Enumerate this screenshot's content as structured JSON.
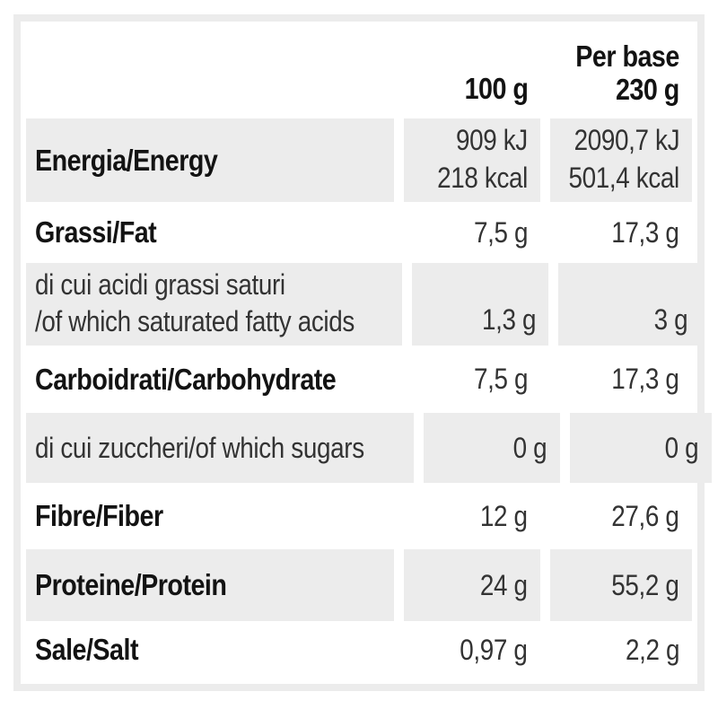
{
  "colors": {
    "shade_gray": "#ececec",
    "frame_gray": "#ececec",
    "label_black": "#131313",
    "value_gray": "#333333",
    "background": "#ffffff"
  },
  "table": {
    "header": {
      "col_100g": "100 g",
      "col_base_line1": "Per base",
      "col_base_line2": "230 g"
    },
    "rows": [
      {
        "label": "Energia/Energy",
        "v1a": "909 kJ",
        "v1b": "218 kcal",
        "v2a": "2090,7 kJ",
        "v2b": "501,4 kcal"
      },
      {
        "label": "Grassi/Fat",
        "v1": "7,5 g",
        "v2": "17,3 g"
      },
      {
        "label_line1": "di cui acidi grassi saturi",
        "label_line2": "/of which saturated fatty acids",
        "v1": "1,3 g",
        "v2": "3 g"
      },
      {
        "label": "Carboidrati/Carbohydrate",
        "v1": "7,5 g",
        "v2": "17,3 g"
      },
      {
        "label": "di cui zuccheri/of which sugars",
        "v1": "0 g",
        "v2": "0 g"
      },
      {
        "label": "Fibre/Fiber",
        "v1": "12 g",
        "v2": "27,6 g"
      },
      {
        "label": "Proteine/Protein",
        "v1": "24 g",
        "v2": "55,2 g"
      },
      {
        "label": "Sale/Salt",
        "v1": "0,97 g",
        "v2": "2,2 g"
      }
    ]
  }
}
